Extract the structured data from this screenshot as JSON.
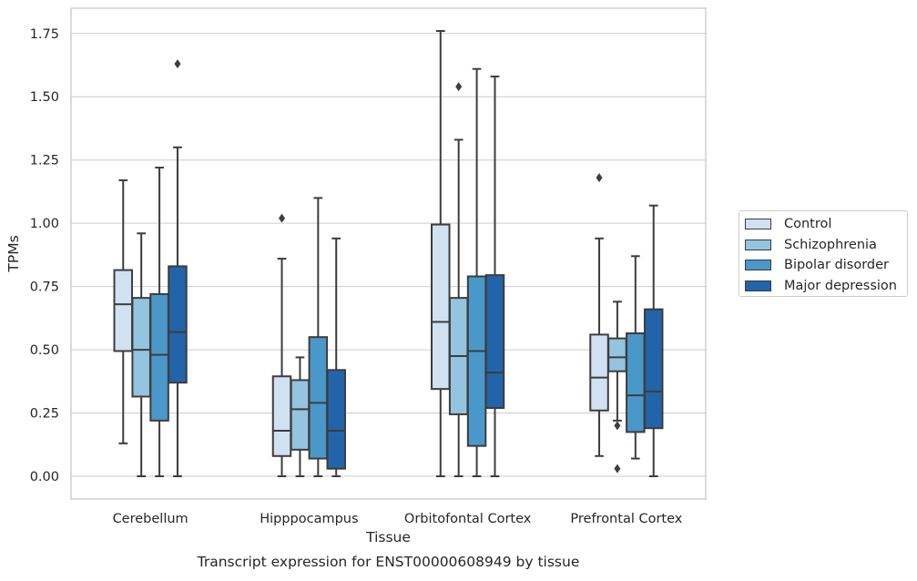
{
  "caption": "Transcript expression for ENST00000608949 by tissue",
  "chart_data": {
    "type": "boxplot",
    "xlabel": "Tissue",
    "ylabel": "TPMs",
    "ylim": [
      -0.09,
      1.85
    ],
    "yticks": [
      0.0,
      0.25,
      0.5,
      0.75,
      1.0,
      1.25,
      1.5,
      1.75
    ],
    "ytick_labels": [
      "0.00",
      "0.25",
      "0.50",
      "0.75",
      "1.00",
      "1.25",
      "1.50",
      "1.75"
    ],
    "categories": [
      "Cerebellum",
      "Hipppocampus",
      "Orbitofontal Cortex",
      "Prefrontal Cortex"
    ],
    "grid": "horizontal",
    "legend_position": "outside right",
    "series": [
      {
        "name": "Control",
        "color": "#d0e1f2",
        "boxes": [
          {
            "whislo": 0.13,
            "q1": 0.495,
            "med": 0.68,
            "q3": 0.815,
            "whishi": 1.17,
            "fliers": []
          },
          {
            "whislo": 0.0,
            "q1": 0.08,
            "med": 0.18,
            "q3": 0.395,
            "whishi": 0.86,
            "fliers": [
              1.02
            ]
          },
          {
            "whislo": 0.0,
            "q1": 0.345,
            "med": 0.61,
            "q3": 0.995,
            "whishi": 1.76,
            "fliers": []
          },
          {
            "whislo": 0.08,
            "q1": 0.26,
            "med": 0.39,
            "q3": 0.56,
            "whishi": 0.94,
            "fliers": [
              1.18
            ]
          }
        ]
      },
      {
        "name": "Schizophrenia",
        "color": "#94c4df",
        "boxes": [
          {
            "whislo": 0.0,
            "q1": 0.315,
            "med": 0.5,
            "q3": 0.705,
            "whishi": 0.96,
            "fliers": []
          },
          {
            "whislo": 0.0,
            "q1": 0.105,
            "med": 0.265,
            "q3": 0.38,
            "whishi": 0.47,
            "fliers": []
          },
          {
            "whislo": 0.0,
            "q1": 0.245,
            "med": 0.475,
            "q3": 0.705,
            "whishi": 1.33,
            "fliers": [
              1.54
            ]
          },
          {
            "whislo": 0.22,
            "q1": 0.415,
            "med": 0.47,
            "q3": 0.545,
            "whishi": 0.69,
            "fliers": [
              0.2,
              0.03
            ]
          }
        ]
      },
      {
        "name": "Bipolar disorder",
        "color": "#4a98c9",
        "boxes": [
          {
            "whislo": 0.0,
            "q1": 0.22,
            "med": 0.48,
            "q3": 0.72,
            "whishi": 1.22,
            "fliers": []
          },
          {
            "whislo": 0.0,
            "q1": 0.07,
            "med": 0.29,
            "q3": 0.55,
            "whishi": 1.1,
            "fliers": []
          },
          {
            "whislo": 0.0,
            "q1": 0.12,
            "med": 0.495,
            "q3": 0.79,
            "whishi": 1.61,
            "fliers": []
          },
          {
            "whislo": 0.07,
            "q1": 0.175,
            "med": 0.32,
            "q3": 0.565,
            "whishi": 0.87,
            "fliers": []
          }
        ]
      },
      {
        "name": "Major depression",
        "color": "#2264a9",
        "boxes": [
          {
            "whislo": 0.0,
            "q1": 0.37,
            "med": 0.57,
            "q3": 0.83,
            "whishi": 1.3,
            "fliers": [
              1.63
            ]
          },
          {
            "whislo": 0.0,
            "q1": 0.03,
            "med": 0.18,
            "q3": 0.42,
            "whishi": 0.94,
            "fliers": []
          },
          {
            "whislo": 0.0,
            "q1": 0.27,
            "med": 0.41,
            "q3": 0.795,
            "whishi": 1.58,
            "fliers": []
          },
          {
            "whislo": 0.0,
            "q1": 0.19,
            "med": 0.335,
            "q3": 0.66,
            "whishi": 1.07,
            "fliers": []
          }
        ]
      }
    ]
  }
}
